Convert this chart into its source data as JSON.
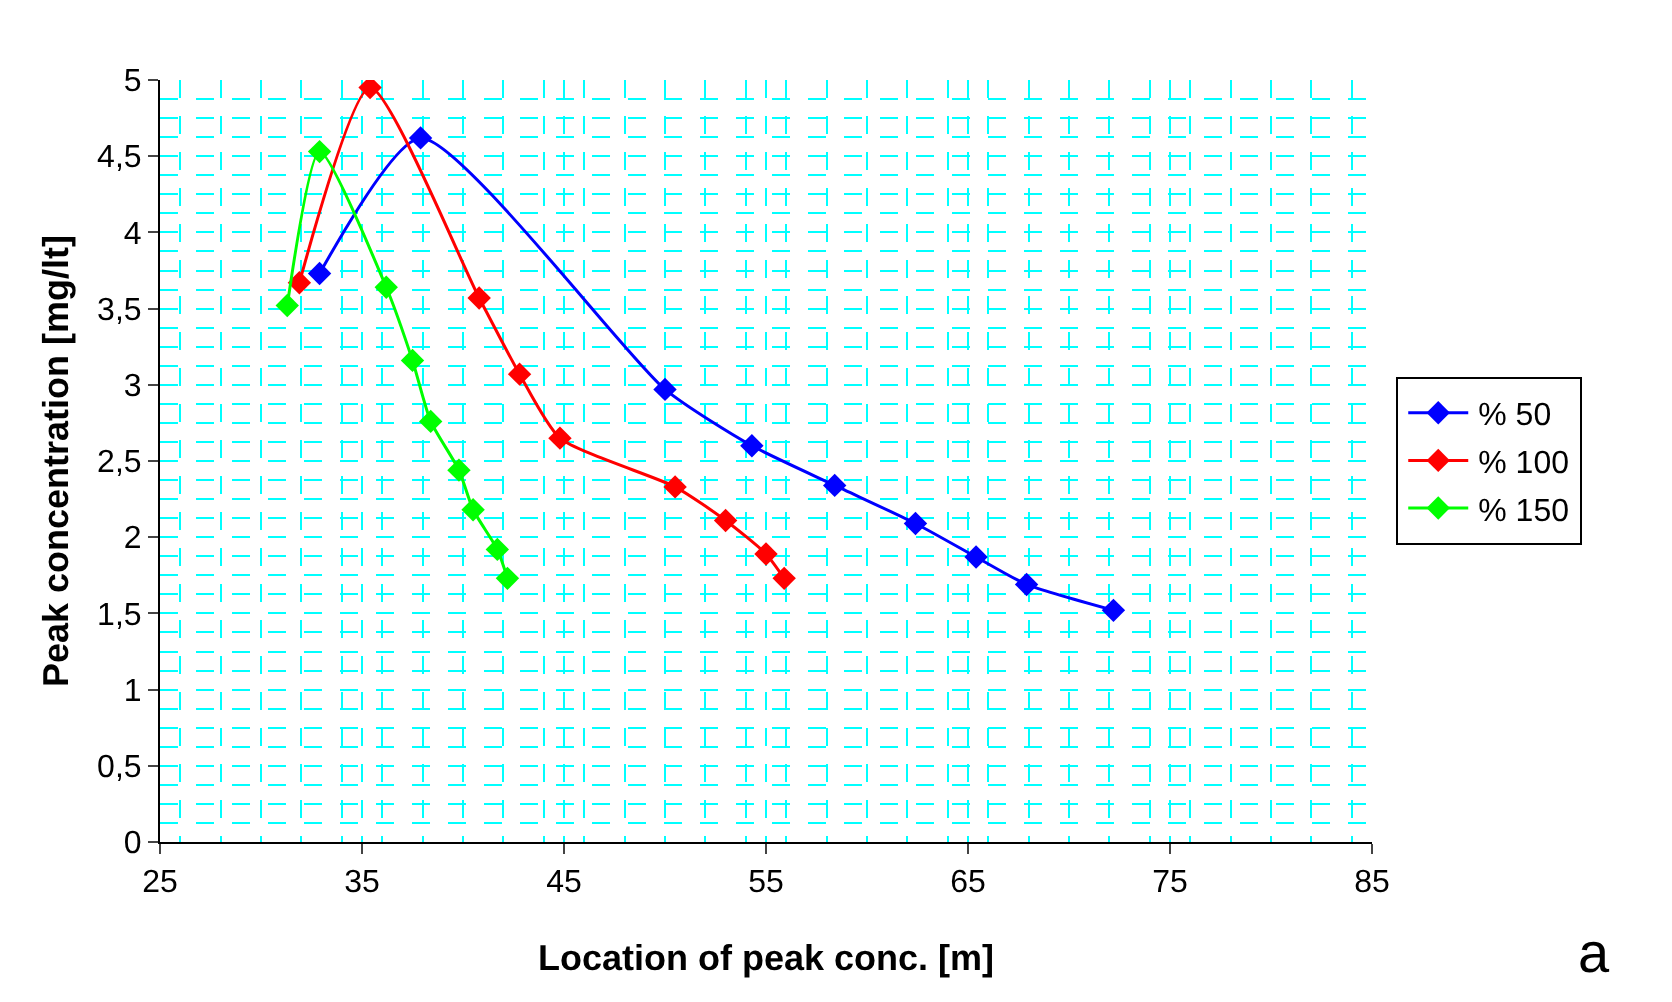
{
  "chart_data": {
    "type": "line",
    "xlabel": "Location of peak conc. [m]",
    "ylabel": "Peak concentration [mg/lt]",
    "xlim": [
      25,
      85
    ],
    "xticks": [
      25,
      35,
      45,
      55,
      65,
      75,
      85
    ],
    "ylim": [
      0,
      5
    ],
    "yticks": [
      0,
      {
        "value": 0.5,
        "label": "0,5"
      },
      1,
      {
        "value": 1.5,
        "label": "1,5"
      },
      2,
      {
        "value": 2.5,
        "label": "2,5"
      },
      3,
      {
        "value": 3.5,
        "label": "3,5"
      },
      4,
      {
        "value": 4.5,
        "label": "4,5"
      },
      5
    ],
    "grid": true,
    "legend": "right",
    "marker": "diamond",
    "line_style": "solid",
    "annotations": [
      "a"
    ],
    "series": [
      {
        "name": "% 50",
        "color": "#0000ff",
        "x": [
          32.9,
          37.9,
          50,
          54.3,
          58.4,
          62.4,
          65.4,
          67.9,
          72.2
        ],
        "values": [
          3.73,
          4.62,
          2.97,
          2.6,
          2.34,
          2.09,
          1.87,
          1.69,
          1.52
        ]
      },
      {
        "name": "% 100",
        "color": "#ff0000",
        "x": [
          31.9,
          35.4,
          40.8,
          42.8,
          44.8,
          50.5,
          53,
          55,
          55.9
        ],
        "values": [
          3.67,
          4.95,
          3.57,
          3.07,
          2.65,
          2.33,
          2.11,
          1.89,
          1.73
        ]
      },
      {
        "name": "% 150",
        "color": "#00ff00",
        "x": [
          31.3,
          32.9,
          36.2,
          37.5,
          38.4,
          39.8,
          40.5,
          41.7,
          42.2
        ],
        "values": [
          3.52,
          4.53,
          3.64,
          3.16,
          2.76,
          2.44,
          2.18,
          1.92,
          1.73
        ]
      }
    ]
  }
}
